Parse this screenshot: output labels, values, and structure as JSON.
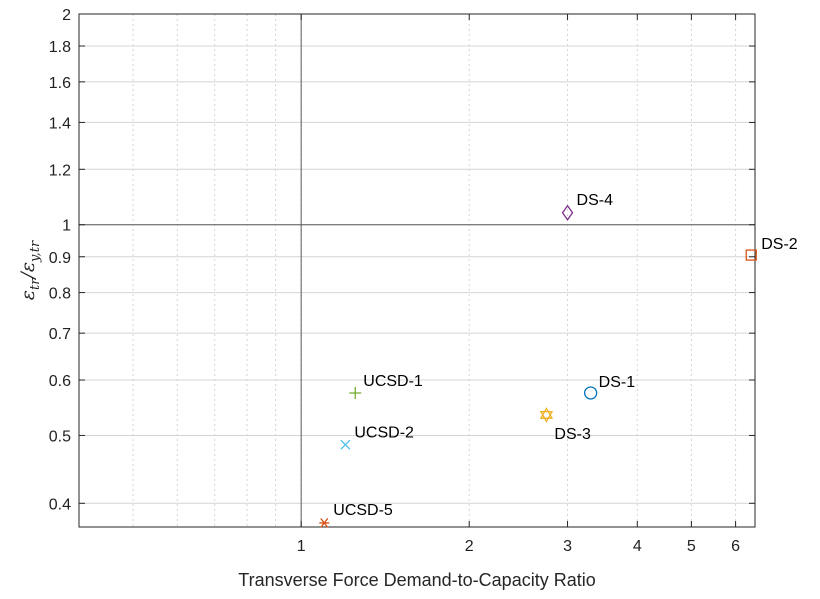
{
  "chart_data": {
    "type": "scatter",
    "xscale": "log",
    "yscale": "log",
    "xlim": [
      0.4,
      6.5
    ],
    "ylim": [
      0.37,
      2.0
    ],
    "grid": true,
    "xlabel": "Transverse Force Demand-to-Capacity Ratio",
    "ylabel": {
      "base": "ε",
      "sub1": "tr",
      "mid": "/ε",
      "sub2": "y,tr"
    },
    "xticks": [
      1,
      2,
      3,
      4,
      5,
      6
    ],
    "xtick_labels": [
      "1",
      "2",
      "3",
      "4",
      "5",
      "6"
    ],
    "yticks": [
      0.4,
      0.5,
      0.6,
      0.7,
      0.8,
      0.9,
      1,
      1.2,
      1.4,
      1.6,
      1.8,
      2
    ],
    "ytick_labels": [
      "0.4",
      "0.5",
      "0.6",
      "0.7",
      "0.8",
      "0.9",
      "1",
      "1.2",
      "1.4",
      "1.6",
      "1.8",
      "2"
    ],
    "reference_lines": {
      "x": 1,
      "y": 1
    },
    "points": [
      {
        "label": "DS-1",
        "x": 3.3,
        "y": 0.575,
        "marker": "circle",
        "color": "#0072BD"
      },
      {
        "label": "DS-2",
        "x": 6.4,
        "y": 0.905,
        "marker": "square",
        "color": "#D95319"
      },
      {
        "label": "DS-3",
        "x": 2.75,
        "y": 0.535,
        "marker": "hexagram",
        "color": "#EDB120"
      },
      {
        "label": "DS-4",
        "x": 3.0,
        "y": 1.04,
        "marker": "diamond",
        "color": "#7E2F8E"
      },
      {
        "label": "UCSD-1",
        "x": 1.25,
        "y": 0.575,
        "marker": "plus",
        "color": "#77AC30"
      },
      {
        "label": "UCSD-2",
        "x": 1.2,
        "y": 0.485,
        "marker": "cross",
        "color": "#4DBEEE"
      },
      {
        "label": "UCSD-5",
        "x": 1.1,
        "y": 0.375,
        "marker": "asterisk",
        "color": "#D95319"
      }
    ]
  }
}
